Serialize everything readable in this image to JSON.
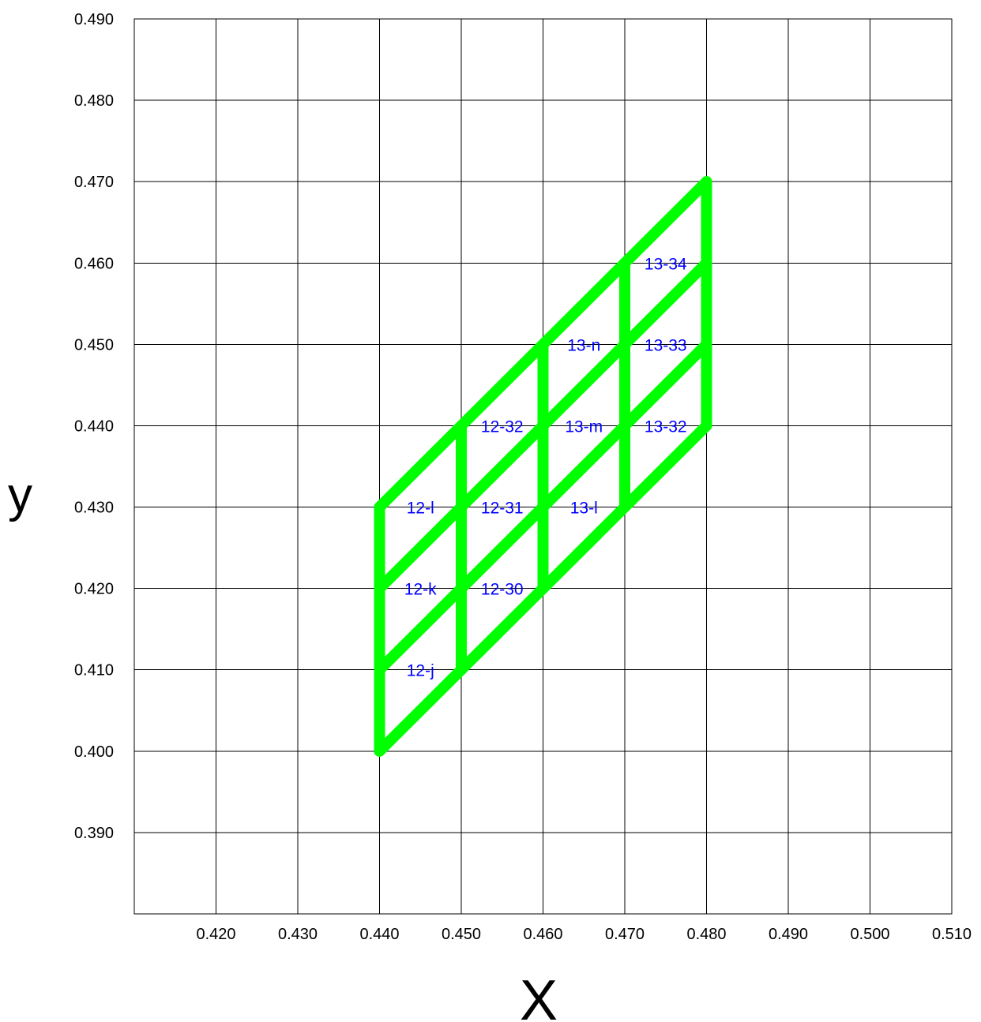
{
  "chart_data": {
    "type": "line",
    "title": "",
    "xlabel": "X",
    "ylabel": "y",
    "xlim": [
      0.41,
      0.51
    ],
    "ylim": [
      0.38,
      0.49
    ],
    "grid": true,
    "x_tick_values": [
      0.42,
      0.43,
      0.44,
      0.45,
      0.46,
      0.47,
      0.48,
      0.49,
      0.5,
      0.51
    ],
    "x_tick_labels": [
      "0.420",
      "0.430",
      "0.440",
      "0.450",
      "0.460",
      "0.470",
      "0.480",
      "0.490",
      "0.500",
      "0.510"
    ],
    "y_tick_values": [
      0.39,
      0.4,
      0.41,
      0.42,
      0.43,
      0.44,
      0.45,
      0.46,
      0.47,
      0.48,
      0.49
    ],
    "y_tick_labels": [
      "0.390",
      "0.400",
      "0.410",
      "0.420",
      "0.430",
      "0.440",
      "0.450",
      "0.460",
      "0.470",
      "0.480",
      "0.490"
    ],
    "mesh_color": "#00ff00",
    "label_color": "#0000ff",
    "mesh_lines": [
      [
        [
          0.44,
          0.4
        ],
        [
          0.44,
          0.43
        ]
      ],
      [
        [
          0.45,
          0.41
        ],
        [
          0.45,
          0.44
        ]
      ],
      [
        [
          0.46,
          0.42
        ],
        [
          0.46,
          0.45
        ]
      ],
      [
        [
          0.47,
          0.43
        ],
        [
          0.47,
          0.46
        ]
      ],
      [
        [
          0.48,
          0.44
        ],
        [
          0.48,
          0.47
        ]
      ],
      [
        [
          0.44,
          0.4
        ],
        [
          0.45,
          0.41
        ]
      ],
      [
        [
          0.44,
          0.41
        ],
        [
          0.46,
          0.43
        ]
      ],
      [
        [
          0.44,
          0.42
        ],
        [
          0.48,
          0.46
        ]
      ],
      [
        [
          0.44,
          0.43
        ],
        [
          0.48,
          0.47
        ]
      ],
      [
        [
          0.45,
          0.41
        ],
        [
          0.48,
          0.44
        ]
      ],
      [
        [
          0.45,
          0.42
        ],
        [
          0.48,
          0.45
        ]
      ]
    ],
    "cell_labels": [
      {
        "text": "12-j",
        "x": 0.445,
        "y": 0.41
      },
      {
        "text": "12-k",
        "x": 0.445,
        "y": 0.42
      },
      {
        "text": "12-l",
        "x": 0.445,
        "y": 0.43
      },
      {
        "text": "12-30",
        "x": 0.455,
        "y": 0.42
      },
      {
        "text": "12-31",
        "x": 0.455,
        "y": 0.43
      },
      {
        "text": "12-32",
        "x": 0.455,
        "y": 0.44
      },
      {
        "text": "13-l",
        "x": 0.465,
        "y": 0.43
      },
      {
        "text": "13-m",
        "x": 0.465,
        "y": 0.44
      },
      {
        "text": "13-n",
        "x": 0.465,
        "y": 0.45
      },
      {
        "text": "13-32",
        "x": 0.475,
        "y": 0.44
      },
      {
        "text": "13-33",
        "x": 0.475,
        "y": 0.45
      },
      {
        "text": "13-34",
        "x": 0.475,
        "y": 0.46
      }
    ]
  }
}
